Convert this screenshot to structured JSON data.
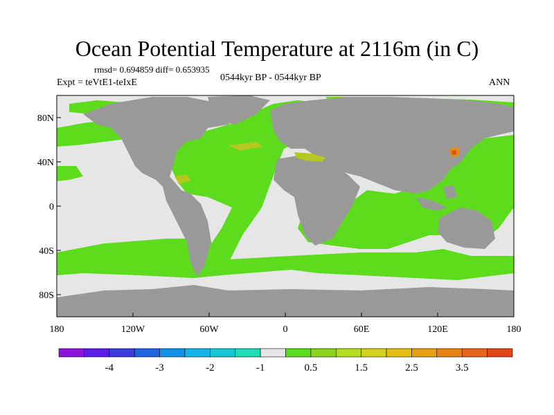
{
  "title": "Ocean Potential Temperature at 2116m (in C)",
  "stats": "rmsd= 0.694859 diff= 0.653935",
  "experiment": "Expt = teVtE1-teIxE",
  "period": "0544kyr BP - 0544kyr BP",
  "season": "ANN",
  "colors": {
    "ocean_light": "#e6e6e6",
    "ocean_green": "#5ddc1e",
    "land": "#999999",
    "anomaly_yellow": "#b4c81e",
    "anomaly_orange": "#e68c14",
    "anomaly_red": "#e0501a"
  },
  "axes": {
    "y_ticks": [
      {
        "label": "80N",
        "lat": 80
      },
      {
        "label": "40N",
        "lat": 40
      },
      {
        "label": "0",
        "lat": 0
      },
      {
        "label": "40S",
        "lat": -40
      },
      {
        "label": "80S",
        "lat": -80
      }
    ],
    "x_ticks": [
      {
        "label": "180",
        "lon": -180
      },
      {
        "label": "120W",
        "lon": -120
      },
      {
        "label": "60W",
        "lon": -60
      },
      {
        "label": "0",
        "lon": 0
      },
      {
        "label": "60E",
        "lon": 60
      },
      {
        "label": "120E",
        "lon": 120
      },
      {
        "label": "180",
        "lon": 180
      }
    ]
  },
  "colorbar": {
    "colors": [
      "#8c14dc",
      "#5a1ee6",
      "#3c3cdc",
      "#1e64dc",
      "#1490e6",
      "#14b4e6",
      "#14c8d2",
      "#1edcb4",
      "#e6e6e6",
      "#5adc1e",
      "#8cd21e",
      "#b4dc1e",
      "#d2d21e",
      "#e6be14",
      "#e6a014",
      "#e68214",
      "#e6641e",
      "#e0461a"
    ],
    "labels": [
      {
        "text": "-4",
        "slot": 2
      },
      {
        "text": "-3",
        "slot": 4
      },
      {
        "text": "-2",
        "slot": 6
      },
      {
        "text": "-1",
        "slot": 8
      },
      {
        "text": "0.5",
        "slot": 10
      },
      {
        "text": "1.5",
        "slot": 12
      },
      {
        "text": "2.5",
        "slot": 14
      },
      {
        "text": "3.5",
        "slot": 16
      }
    ]
  }
}
